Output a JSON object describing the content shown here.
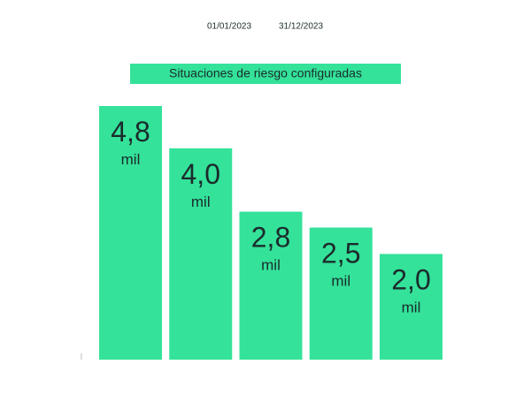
{
  "chart_data": {
    "type": "bar",
    "date_range": [
      "01/01/2023",
      "31/12/2023"
    ],
    "title": "Situaciones de riesgo configuradas",
    "categories": [
      null,
      null,
      null,
      null,
      null
    ],
    "values": [
      4800,
      4000,
      2800,
      2500,
      2000
    ],
    "value_labels": [
      "4,8 mil",
      "4,0 mil",
      "2,8 mil",
      "2,5 mil",
      "2,0 mil"
    ],
    "color": "#34e29a",
    "ylim": [
      0,
      4800
    ]
  }
}
